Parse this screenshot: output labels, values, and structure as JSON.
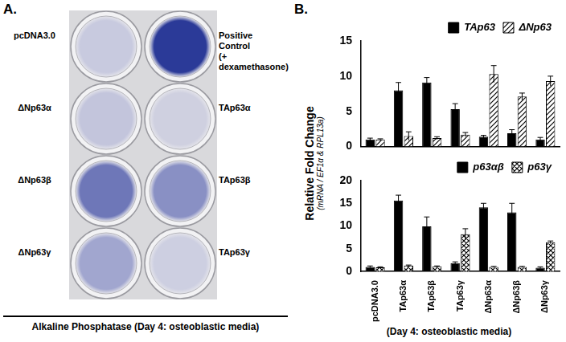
{
  "panel_a": {
    "label": "A.",
    "wells": [
      {
        "label": "pcDNA3.0",
        "color": "#c8cadf"
      },
      {
        "label": "Positive\nControl\n(+ dexamethasone)",
        "color": "#2b3a98"
      },
      {
        "label": "ΔNp63α",
        "color": "#c3c5dc"
      },
      {
        "label": "TAp63α",
        "color": "#cfd0e0"
      },
      {
        "label": "ΔNp63β",
        "color": "#6e77b8"
      },
      {
        "label": "TAp63β",
        "color": "#8990c4"
      },
      {
        "label": "ΔNp63γ",
        "color": "#a1a6cf"
      },
      {
        "label": "TAp63γ",
        "color": "#cdcfe1"
      }
    ],
    "caption": "Alkaline Phosphatase (Day 4: osteoblastic media)"
  },
  "panel_b": {
    "label": "B.",
    "y_label": "Relative Fold Change",
    "y_sublabel": "(mRNA / EF1α & RPL13a)",
    "x_label": "(Day 4: osteoblastic media)"
  },
  "chart_data": [
    {
      "type": "bar",
      "categories": [
        "pcDNA3.0",
        "TAp63α",
        "TAp63β",
        "TAp63γ",
        "ΔNp63α",
        "ΔNp63β",
        "ΔNp63γ"
      ],
      "series": [
        {
          "name": "TAp63",
          "color": "#000000",
          "values": [
            1.0,
            8.0,
            9.1,
            5.3,
            1.4,
            1.9,
            1.0
          ],
          "errors": [
            0.2,
            1.1,
            0.7,
            0.8,
            0.2,
            0.5,
            0.3
          ]
        },
        {
          "name": "ΔNp63",
          "color": "#000000",
          "values": [
            1.0,
            1.5,
            1.2,
            1.7,
            10.3,
            7.1,
            9.3
          ],
          "errors": [
            0.1,
            0.6,
            0.2,
            0.3,
            1.2,
            0.5,
            0.7
          ]
        }
      ],
      "ylim": [
        0,
        15
      ],
      "yticks": [
        0,
        5,
        10,
        15
      ],
      "grid": false,
      "legend": "top",
      "tick_labels": "y"
    },
    {
      "type": "bar",
      "categories": [
        "pcDNA3.0",
        "TAp63α",
        "TAp63β",
        "TAp63γ",
        "ΔNp63α",
        "ΔNp63β",
        "ΔNp63γ"
      ],
      "series": [
        {
          "name": "p63αβ",
          "color": "#000000",
          "values": [
            1.0,
            15.6,
            9.9,
            1.8,
            14.1,
            13.0,
            0.8
          ],
          "errors": [
            0.2,
            1.2,
            2.1,
            0.3,
            0.9,
            2.0,
            0.2
          ]
        },
        {
          "name": "p63γ",
          "color": "#000000",
          "values": [
            0.9,
            1.3,
            1.1,
            8.2,
            1.0,
            1.0,
            6.4
          ],
          "errors": [
            0.1,
            0.1,
            0.1,
            1.2,
            0.1,
            0.1,
            0.3
          ]
        }
      ],
      "ylim": [
        0,
        20
      ],
      "yticks": [
        0,
        5,
        10,
        15,
        20
      ],
      "grid": false,
      "legend": "top"
    }
  ]
}
